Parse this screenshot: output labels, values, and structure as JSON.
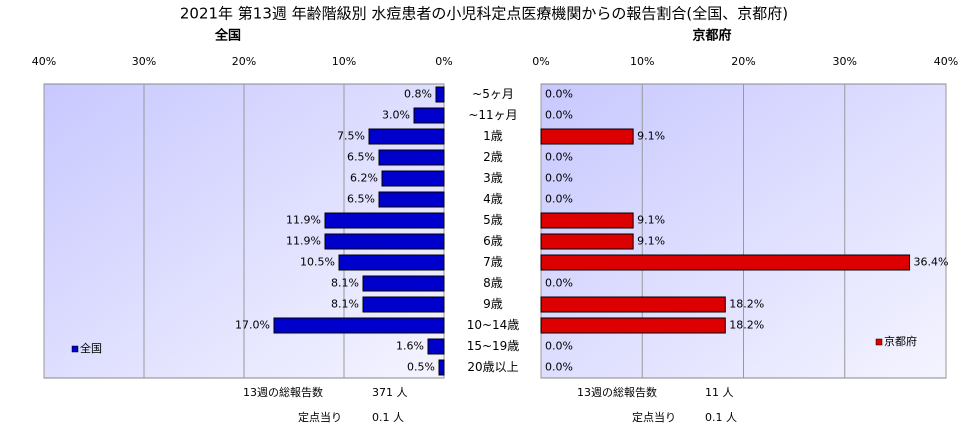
{
  "title": "2021年 第13週 年齢階級別 水痘患者の小児科定点医療機関からの報告割合(全国、京都府)",
  "chart_data": [
    {
      "type": "bar",
      "orientation": "horizontal",
      "subtitle": "全国",
      "xaxis_reversed": true,
      "categories": [
        "~5ヶ月",
        "~11ヶ月",
        "1歳",
        "2歳",
        "3歳",
        "4歳",
        "5歳",
        "6歳",
        "7歳",
        "8歳",
        "9歳",
        "10~14歳",
        "15~19歳",
        "20歳以上"
      ],
      "series": [
        {
          "name": "全国",
          "color": "#0000cc",
          "values": [
            0.8,
            3.0,
            7.5,
            6.5,
            6.2,
            6.5,
            11.9,
            11.9,
            10.5,
            8.1,
            8.1,
            17.0,
            1.6,
            0.5
          ],
          "value_labels": [
            "0.8%",
            "3.0%",
            "7.5%",
            "6.5%",
            "6.2%",
            "6.5%",
            "11.9%",
            "11.9%",
            "10.5%",
            "8.1%",
            "8.1%",
            "17.0%",
            "1.6%",
            "0.5%"
          ]
        }
      ],
      "xlim": [
        0,
        40
      ],
      "xticks": [
        {
          "value": 0,
          "label": "0%"
        },
        {
          "value": 10,
          "label": "10%"
        },
        {
          "value": 20,
          "label": "20%"
        },
        {
          "value": 30,
          "label": "30%"
        },
        {
          "value": 40,
          "label": "40%"
        }
      ],
      "grid": true,
      "legend": "lower left",
      "footer": [
        [
          "13週の総報告数",
          "371 人"
        ],
        [
          "定点当り",
          "0.1 人"
        ]
      ]
    },
    {
      "type": "bar",
      "orientation": "horizontal",
      "subtitle": "京都府",
      "xaxis_reversed": false,
      "series": [
        {
          "name": "京都府",
          "color": "#dd0000",
          "values": [
            0.0,
            0.0,
            9.1,
            0.0,
            0.0,
            0.0,
            9.1,
            9.1,
            36.4,
            0.0,
            18.2,
            18.2,
            0.0,
            0.0
          ],
          "value_labels": [
            "0.0%",
            "0.0%",
            "9.1%",
            "0.0%",
            "0.0%",
            "0.0%",
            "9.1%",
            "9.1%",
            "36.4%",
            "0.0%",
            "18.2%",
            "18.2%",
            "0.0%",
            "0.0%"
          ]
        }
      ],
      "xlim": [
        0,
        40
      ],
      "xticks": [
        {
          "value": 0,
          "label": "0%"
        },
        {
          "value": 10,
          "label": "10%"
        },
        {
          "value": 20,
          "label": "20%"
        },
        {
          "value": 30,
          "label": "30%"
        },
        {
          "value": 40,
          "label": "40%"
        }
      ],
      "grid": true,
      "legend": "lower right",
      "footer": [
        [
          "13週の総報告数",
          "11 人"
        ],
        [
          "定点当り",
          "0.1 人"
        ]
      ]
    }
  ]
}
